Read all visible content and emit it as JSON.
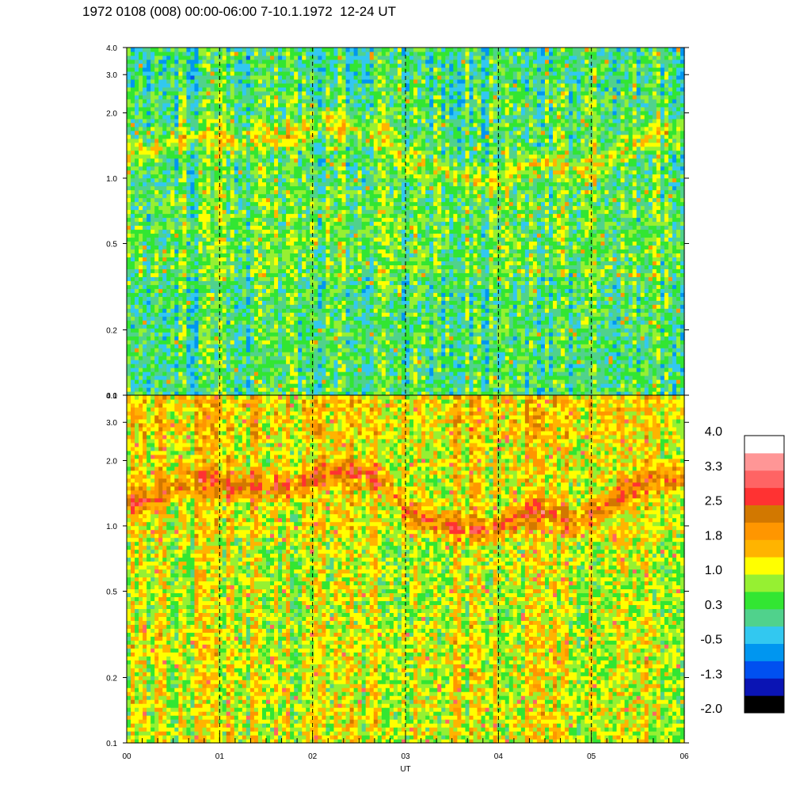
{
  "title": "1972 0108 (008) 00:00-06:00 7-10.1.1972  12-24 UT",
  "chart_data": {
    "type": "heatmap",
    "xlabel": "UT",
    "x_ticks": [
      "00",
      "01",
      "02",
      "03",
      "04",
      "05",
      "06"
    ],
    "xlim": [
      0,
      6
    ],
    "y_scale": "log",
    "panels": [
      {
        "name": "",
        "ylim": [
          0.1,
          4.0
        ],
        "y_ticks": [
          {
            "value": 0.1,
            "label": "0.1"
          },
          {
            "value": 0.2,
            "label": "0.2"
          },
          {
            "value": 0.5,
            "label": "0.5"
          },
          {
            "value": 1.0,
            "label": "1.0"
          },
          {
            "value": 2.0,
            "label": "2.0"
          },
          {
            "value": 3.0,
            "label": "3.0"
          },
          {
            "value": 4.0,
            "label": "4.0"
          }
        ],
        "dominant_levels": {
          "low_freq": 0.3,
          "mid": 0.5,
          "band": 1.2,
          "high_freq": 0.2
        },
        "band_frequency_trace": [
          [
            0.0,
            1.3
          ],
          [
            0.3,
            1.35
          ],
          [
            0.6,
            1.55
          ],
          [
            0.9,
            1.6
          ],
          [
            1.2,
            1.45
          ],
          [
            1.5,
            1.6
          ],
          [
            1.8,
            1.55
          ],
          [
            2.1,
            1.8
          ],
          [
            2.5,
            1.7
          ],
          [
            2.8,
            1.55
          ],
          [
            3.0,
            1.2
          ],
          [
            3.3,
            1.1
          ],
          [
            3.6,
            1.0
          ],
          [
            3.9,
            0.95
          ],
          [
            4.2,
            1.1
          ],
          [
            4.5,
            1.2
          ],
          [
            4.8,
            1.05
          ],
          [
            5.1,
            1.2
          ],
          [
            5.4,
            1.4
          ],
          [
            5.7,
            1.65
          ],
          [
            6.0,
            1.6
          ]
        ]
      },
      {
        "name": "",
        "ylim": [
          0.1,
          4.0
        ],
        "y_ticks": [
          {
            "value": 0.1,
            "label": "0.1"
          },
          {
            "value": 0.2,
            "label": "0.2"
          },
          {
            "value": 0.5,
            "label": "0.5"
          },
          {
            "value": 1.0,
            "label": "1.0"
          },
          {
            "value": 2.0,
            "label": "2.0"
          },
          {
            "value": 3.0,
            "label": "3.0"
          },
          {
            "value": 4.0,
            "label": "4.0"
          }
        ],
        "dominant_levels": {
          "low_freq": 1.1,
          "mid": 1.0,
          "band": 2.4,
          "high_freq": 1.4
        },
        "band_frequency_trace": [
          [
            0.0,
            1.3
          ],
          [
            0.3,
            1.35
          ],
          [
            0.6,
            1.6
          ],
          [
            0.9,
            1.65
          ],
          [
            1.2,
            1.5
          ],
          [
            1.5,
            1.55
          ],
          [
            1.8,
            1.5
          ],
          [
            2.1,
            1.8
          ],
          [
            2.5,
            1.75
          ],
          [
            2.8,
            1.6
          ],
          [
            3.0,
            1.15
          ],
          [
            3.3,
            1.05
          ],
          [
            3.6,
            0.98
          ],
          [
            3.9,
            0.95
          ],
          [
            4.2,
            1.1
          ],
          [
            4.5,
            1.2
          ],
          [
            4.8,
            1.0
          ],
          [
            5.1,
            1.2
          ],
          [
            5.4,
            1.45
          ],
          [
            5.7,
            1.7
          ],
          [
            6.0,
            1.65
          ]
        ]
      }
    ],
    "dashed_gridlines_x": [
      1,
      2,
      3,
      4,
      5
    ],
    "colorbar": {
      "labels": [
        "4.0",
        "3.3",
        "2.5",
        "1.8",
        "1.0",
        "0.3",
        "-0.5",
        "-1.3",
        "-2.0"
      ],
      "min": -2.0,
      "max": 4.0,
      "colors": [
        "#000000",
        "#0a14b4",
        "#0050f0",
        "#0096f0",
        "#32c8f0",
        "#50d28c",
        "#32e632",
        "#96f032",
        "#ffff00",
        "#ffb400",
        "#ff9600",
        "#d27800",
        "#ff3232",
        "#ff6464",
        "#ff9696",
        "#ffffff"
      ]
    }
  }
}
